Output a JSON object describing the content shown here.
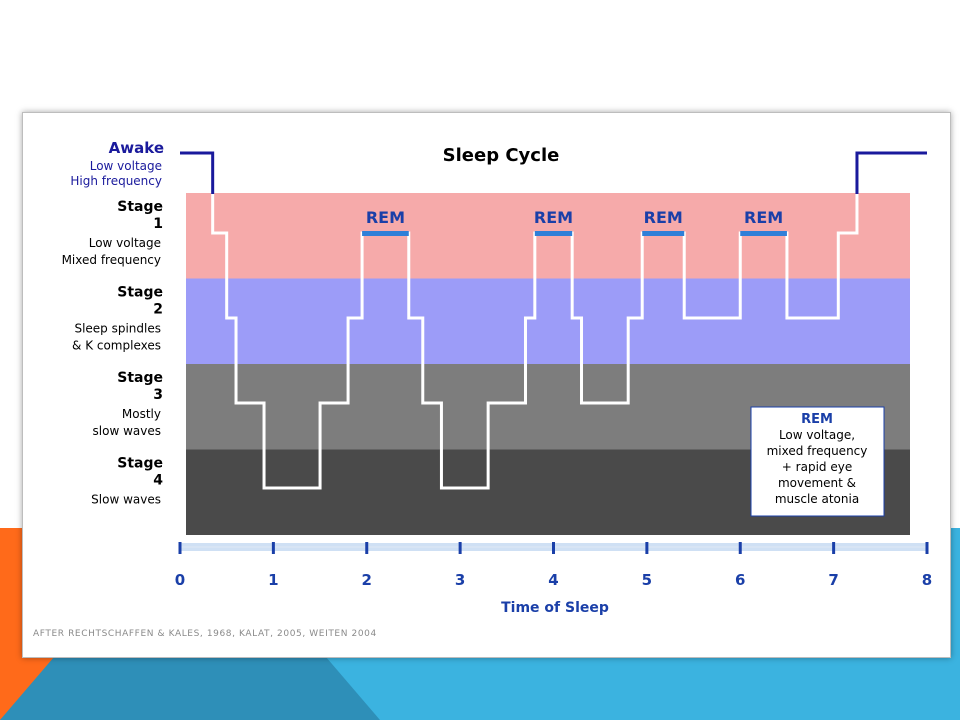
{
  "slide": {
    "accent_orange": "#ff6a1a",
    "accent_blue": "#3bb3e0",
    "accent_teal": "#2e8fb8"
  },
  "chart_data": {
    "type": "line",
    "title": "Sleep Cycle",
    "xlabel": "Time of Sleep",
    "ylabel": "",
    "xlim": [
      0,
      8
    ],
    "x_ticks": [
      "0",
      "1",
      "2",
      "3",
      "4",
      "5",
      "6",
      "7",
      "8"
    ],
    "bands": [
      {
        "key": "stage1",
        "heading": "Stage",
        "number": "1",
        "desc": [
          "Low voltage",
          "Mixed frequency"
        ],
        "color": "#f6aaaa"
      },
      {
        "key": "stage2",
        "heading": "Stage",
        "number": "2",
        "desc": [
          "Sleep spindles",
          "& K complexes"
        ],
        "color": "#9c9cf8"
      },
      {
        "key": "stage3",
        "heading": "Stage",
        "number": "3",
        "desc": [
          "Mostly",
          "slow waves"
        ],
        "color": "#7d7d7d"
      },
      {
        "key": "stage4",
        "heading": "Stage",
        "number": "4",
        "desc": [
          "Slow waves"
        ],
        "color": "#4a4a4a"
      }
    ],
    "awake": {
      "label": "Awake",
      "desc": [
        "Low voltage",
        "High frequency"
      ]
    },
    "hypnogram": [
      [
        0.3,
        0
      ],
      [
        0.35,
        0
      ],
      [
        0.35,
        1
      ],
      [
        0.5,
        1
      ],
      [
        0.5,
        2
      ],
      [
        0.6,
        2
      ],
      [
        0.6,
        3
      ],
      [
        0.9,
        3
      ],
      [
        0.9,
        4
      ],
      [
        1.5,
        4
      ],
      [
        1.5,
        3
      ],
      [
        1.8,
        3
      ],
      [
        1.8,
        2
      ],
      [
        1.95,
        2
      ],
      [
        1.95,
        1
      ],
      [
        2.45,
        1
      ],
      [
        2.45,
        2
      ],
      [
        2.6,
        2
      ],
      [
        2.6,
        3
      ],
      [
        2.8,
        3
      ],
      [
        2.8,
        4
      ],
      [
        3.3,
        4
      ],
      [
        3.3,
        3
      ],
      [
        3.7,
        3
      ],
      [
        3.7,
        2
      ],
      [
        3.8,
        2
      ],
      [
        3.8,
        1
      ],
      [
        4.2,
        1
      ],
      [
        4.2,
        2
      ],
      [
        4.3,
        2
      ],
      [
        4.3,
        3
      ],
      [
        4.8,
        3
      ],
      [
        4.8,
        2
      ],
      [
        4.95,
        2
      ],
      [
        4.95,
        1
      ],
      [
        5.4,
        1
      ],
      [
        5.4,
        2
      ],
      [
        6.0,
        2
      ],
      [
        6.0,
        1
      ],
      [
        6.5,
        1
      ],
      [
        6.5,
        2
      ],
      [
        7.05,
        2
      ],
      [
        7.05,
        1
      ],
      [
        7.25,
        1
      ],
      [
        7.25,
        0
      ],
      [
        7.45,
        0
      ]
    ],
    "awake_line": {
      "start": [
        0,
        0.35
      ],
      "end": [
        7.25,
        8
      ]
    },
    "rem_periods": [
      {
        "label": "REM",
        "x0": 1.95,
        "x1": 2.45
      },
      {
        "label": "REM",
        "x0": 3.8,
        "x1": 4.2
      },
      {
        "label": "REM",
        "x0": 4.95,
        "x1": 5.4
      },
      {
        "label": "REM",
        "x0": 6.0,
        "x1": 6.5
      }
    ],
    "note": {
      "title": "REM",
      "lines": [
        "Low voltage,",
        "mixed frequency",
        "+ rapid eye",
        "movement &",
        "muscle atonia"
      ]
    },
    "credit": "AFTER RECHTSCHAFFEN & KALES, 1968, KALAT, 2005, WEITEN 2004",
    "colors": {
      "rem_bar": "#2f7fd8",
      "awake_line": "#1a1a9c",
      "trace": "#ffffff",
      "axis": "#1a3fa8",
      "axis_bar": "#cfe0f4"
    }
  }
}
